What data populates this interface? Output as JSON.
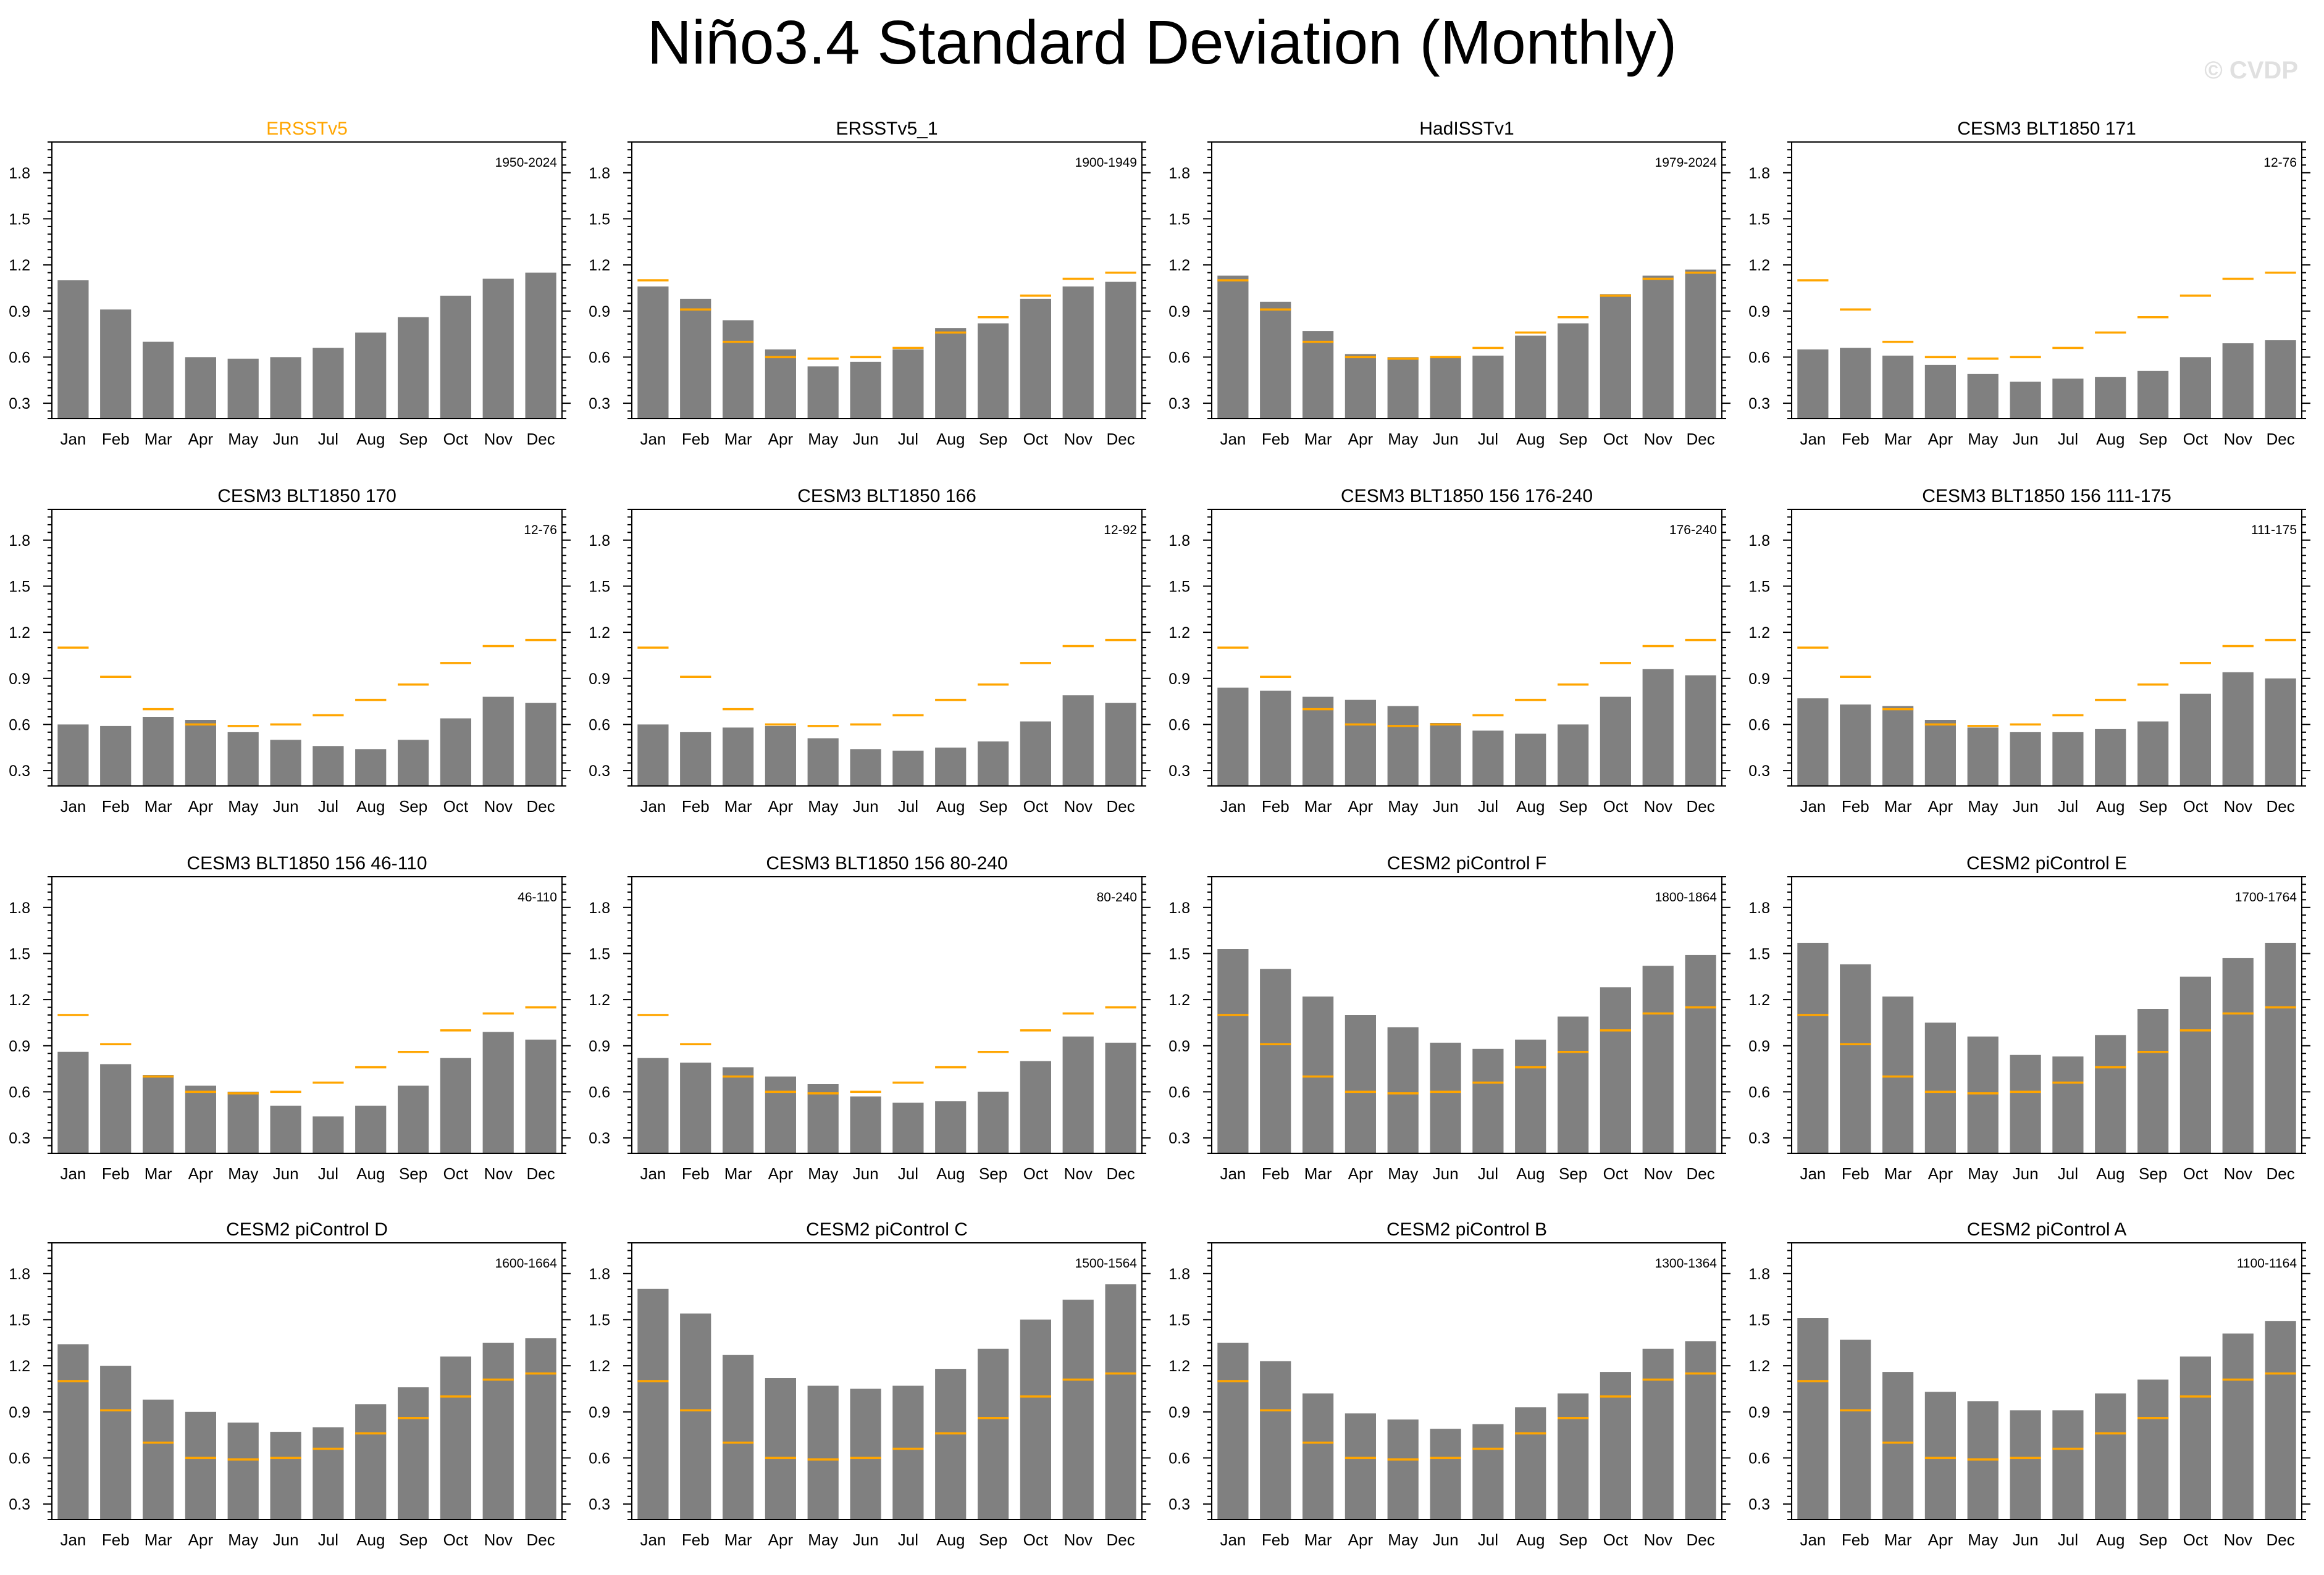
{
  "title": "Niño3.4 Standard Deviation (Monthly)",
  "watermark": "© CVDP",
  "colors": {
    "bar": "#808080",
    "reference": "#FFA500",
    "axis": "#000000",
    "reference_title": "#FFA500"
  },
  "reference_values": [
    1.1,
    0.91,
    0.7,
    0.6,
    0.59,
    0.6,
    0.66,
    0.76,
    0.86,
    1.0,
    1.11,
    1.15
  ],
  "chart_data": [
    {
      "type": "bar",
      "title": "ERSSTv5",
      "period": "1950-2024",
      "is_reference": true,
      "categories": [
        "Jan",
        "Feb",
        "Mar",
        "Apr",
        "May",
        "Jun",
        "Jul",
        "Aug",
        "Sep",
        "Oct",
        "Nov",
        "Dec"
      ],
      "values": [
        1.1,
        0.91,
        0.7,
        0.6,
        0.59,
        0.6,
        0.66,
        0.76,
        0.86,
        1.0,
        1.11,
        1.15
      ],
      "yticks": [
        "0.3",
        "0.6",
        "0.9",
        "1.2",
        "1.5",
        "1.8"
      ],
      "ylim": [
        0.2,
        2.0
      ]
    },
    {
      "type": "bar",
      "title": "ERSSTv5_1",
      "period": "1900-1949",
      "is_reference": false,
      "categories": [
        "Jan",
        "Feb",
        "Mar",
        "Apr",
        "May",
        "Jun",
        "Jul",
        "Aug",
        "Sep",
        "Oct",
        "Nov",
        "Dec"
      ],
      "values": [
        1.06,
        0.98,
        0.84,
        0.65,
        0.54,
        0.57,
        0.65,
        0.79,
        0.82,
        0.98,
        1.06,
        1.09
      ],
      "yticks": [
        "0.3",
        "0.6",
        "0.9",
        "1.2",
        "1.5",
        "1.8"
      ],
      "ylim": [
        0.2,
        2.0
      ]
    },
    {
      "type": "bar",
      "title": "HadISSTv1",
      "period": "1979-2024",
      "is_reference": false,
      "categories": [
        "Jan",
        "Feb",
        "Mar",
        "Apr",
        "May",
        "Jun",
        "Jul",
        "Aug",
        "Sep",
        "Oct",
        "Nov",
        "Dec"
      ],
      "values": [
        1.13,
        0.96,
        0.77,
        0.62,
        0.6,
        0.6,
        0.61,
        0.74,
        0.82,
        1.01,
        1.13,
        1.17
      ],
      "yticks": [
        "0.3",
        "0.6",
        "0.9",
        "1.2",
        "1.5",
        "1.8"
      ],
      "ylim": [
        0.2,
        2.0
      ]
    },
    {
      "type": "bar",
      "title": "CESM3 BLT1850 171",
      "period": "12-76",
      "is_reference": false,
      "categories": [
        "Jan",
        "Feb",
        "Mar",
        "Apr",
        "May",
        "Jun",
        "Jul",
        "Aug",
        "Sep",
        "Oct",
        "Nov",
        "Dec"
      ],
      "values": [
        0.65,
        0.66,
        0.61,
        0.55,
        0.49,
        0.44,
        0.46,
        0.47,
        0.51,
        0.6,
        0.69,
        0.71
      ],
      "yticks": [
        "0.3",
        "0.6",
        "0.9",
        "1.2",
        "1.5",
        "1.8"
      ],
      "ylim": [
        0.2,
        2.0
      ]
    },
    {
      "type": "bar",
      "title": "CESM3 BLT1850 170",
      "period": "12-76",
      "is_reference": false,
      "categories": [
        "Jan",
        "Feb",
        "Mar",
        "Apr",
        "May",
        "Jun",
        "Jul",
        "Aug",
        "Sep",
        "Oct",
        "Nov",
        "Dec"
      ],
      "values": [
        0.6,
        0.59,
        0.65,
        0.63,
        0.55,
        0.5,
        0.46,
        0.44,
        0.5,
        0.64,
        0.78,
        0.74
      ],
      "yticks": [
        "0.3",
        "0.6",
        "0.9",
        "1.2",
        "1.5",
        "1.8"
      ],
      "ylim": [
        0.2,
        2.0
      ]
    },
    {
      "type": "bar",
      "title": "CESM3 BLT1850 166",
      "period": "12-92",
      "is_reference": false,
      "categories": [
        "Jan",
        "Feb",
        "Mar",
        "Apr",
        "May",
        "Jun",
        "Jul",
        "Aug",
        "Sep",
        "Oct",
        "Nov",
        "Dec"
      ],
      "values": [
        0.6,
        0.55,
        0.58,
        0.59,
        0.51,
        0.44,
        0.43,
        0.45,
        0.49,
        0.62,
        0.79,
        0.74
      ],
      "yticks": [
        "0.3",
        "0.6",
        "0.9",
        "1.2",
        "1.5",
        "1.8"
      ],
      "ylim": [
        0.2,
        2.0
      ]
    },
    {
      "type": "bar",
      "title": "CESM3 BLT1850 156 176-240",
      "period": "176-240",
      "is_reference": false,
      "categories": [
        "Jan",
        "Feb",
        "Mar",
        "Apr",
        "May",
        "Jun",
        "Jul",
        "Aug",
        "Sep",
        "Oct",
        "Nov",
        "Dec"
      ],
      "values": [
        0.84,
        0.82,
        0.78,
        0.76,
        0.72,
        0.61,
        0.56,
        0.54,
        0.6,
        0.78,
        0.96,
        0.92
      ],
      "yticks": [
        "0.3",
        "0.6",
        "0.9",
        "1.2",
        "1.5",
        "1.8"
      ],
      "ylim": [
        0.2,
        2.0
      ]
    },
    {
      "type": "bar",
      "title": "CESM3 BLT1850 156 111-175",
      "period": "111-175",
      "is_reference": false,
      "categories": [
        "Jan",
        "Feb",
        "Mar",
        "Apr",
        "May",
        "Jun",
        "Jul",
        "Aug",
        "Sep",
        "Oct",
        "Nov",
        "Dec"
      ],
      "values": [
        0.77,
        0.73,
        0.72,
        0.63,
        0.58,
        0.55,
        0.55,
        0.57,
        0.62,
        0.8,
        0.94,
        0.9
      ],
      "yticks": [
        "0.3",
        "0.6",
        "0.9",
        "1.2",
        "1.5",
        "1.8"
      ],
      "ylim": [
        0.2,
        2.0
      ]
    },
    {
      "type": "bar",
      "title": "CESM3 BLT1850 156 46-110",
      "period": "46-110",
      "is_reference": false,
      "categories": [
        "Jan",
        "Feb",
        "Mar",
        "Apr",
        "May",
        "Jun",
        "Jul",
        "Aug",
        "Sep",
        "Oct",
        "Nov",
        "Dec"
      ],
      "values": [
        0.86,
        0.78,
        0.71,
        0.64,
        0.6,
        0.51,
        0.44,
        0.51,
        0.64,
        0.82,
        0.99,
        0.94
      ],
      "yticks": [
        "0.3",
        "0.6",
        "0.9",
        "1.2",
        "1.5",
        "1.8"
      ],
      "ylim": [
        0.2,
        2.0
      ]
    },
    {
      "type": "bar",
      "title": "CESM3 BLT1850 156 80-240",
      "period": "80-240",
      "is_reference": false,
      "categories": [
        "Jan",
        "Feb",
        "Mar",
        "Apr",
        "May",
        "Jun",
        "Jul",
        "Aug",
        "Sep",
        "Oct",
        "Nov",
        "Dec"
      ],
      "values": [
        0.82,
        0.79,
        0.76,
        0.7,
        0.65,
        0.57,
        0.53,
        0.54,
        0.6,
        0.8,
        0.96,
        0.92
      ],
      "yticks": [
        "0.3",
        "0.6",
        "0.9",
        "1.2",
        "1.5",
        "1.8"
      ],
      "ylim": [
        0.2,
        2.0
      ]
    },
    {
      "type": "bar",
      "title": "CESM2 piControl F",
      "period": "1800-1864",
      "is_reference": false,
      "categories": [
        "Jan",
        "Feb",
        "Mar",
        "Apr",
        "May",
        "Jun",
        "Jul",
        "Aug",
        "Sep",
        "Oct",
        "Nov",
        "Dec"
      ],
      "values": [
        1.53,
        1.4,
        1.22,
        1.1,
        1.02,
        0.92,
        0.88,
        0.94,
        1.09,
        1.28,
        1.42,
        1.49
      ],
      "yticks": [
        "0.3",
        "0.6",
        "0.9",
        "1.2",
        "1.5",
        "1.8"
      ],
      "ylim": [
        0.2,
        2.0
      ]
    },
    {
      "type": "bar",
      "title": "CESM2 piControl E",
      "period": "1700-1764",
      "is_reference": false,
      "categories": [
        "Jan",
        "Feb",
        "Mar",
        "Apr",
        "May",
        "Jun",
        "Jul",
        "Aug",
        "Sep",
        "Oct",
        "Nov",
        "Dec"
      ],
      "values": [
        1.57,
        1.43,
        1.22,
        1.05,
        0.96,
        0.84,
        0.83,
        0.97,
        1.14,
        1.35,
        1.47,
        1.57
      ],
      "yticks": [
        "0.3",
        "0.6",
        "0.9",
        "1.2",
        "1.5",
        "1.8"
      ],
      "ylim": [
        0.2,
        2.0
      ]
    },
    {
      "type": "bar",
      "title": "CESM2 piControl D",
      "period": "1600-1664",
      "is_reference": false,
      "categories": [
        "Jan",
        "Feb",
        "Mar",
        "Apr",
        "May",
        "Jun",
        "Jul",
        "Aug",
        "Sep",
        "Oct",
        "Nov",
        "Dec"
      ],
      "values": [
        1.34,
        1.2,
        0.98,
        0.9,
        0.83,
        0.77,
        0.8,
        0.95,
        1.06,
        1.26,
        1.35,
        1.38
      ],
      "yticks": [
        "0.3",
        "0.6",
        "0.9",
        "1.2",
        "1.5",
        "1.8"
      ],
      "ylim": [
        0.2,
        2.0
      ]
    },
    {
      "type": "bar",
      "title": "CESM2 piControl C",
      "period": "1500-1564",
      "is_reference": false,
      "categories": [
        "Jan",
        "Feb",
        "Mar",
        "Apr",
        "May",
        "Jun",
        "Jul",
        "Aug",
        "Sep",
        "Oct",
        "Nov",
        "Dec"
      ],
      "values": [
        1.7,
        1.54,
        1.27,
        1.12,
        1.07,
        1.05,
        1.07,
        1.18,
        1.31,
        1.5,
        1.63,
        1.73
      ],
      "yticks": [
        "0.3",
        "0.6",
        "0.9",
        "1.2",
        "1.5",
        "1.8"
      ],
      "ylim": [
        0.2,
        2.0
      ]
    },
    {
      "type": "bar",
      "title": "CESM2 piControl B",
      "period": "1300-1364",
      "is_reference": false,
      "categories": [
        "Jan",
        "Feb",
        "Mar",
        "Apr",
        "May",
        "Jun",
        "Jul",
        "Aug",
        "Sep",
        "Oct",
        "Nov",
        "Dec"
      ],
      "values": [
        1.35,
        1.23,
        1.02,
        0.89,
        0.85,
        0.79,
        0.82,
        0.93,
        1.02,
        1.16,
        1.31,
        1.36
      ],
      "yticks": [
        "0.3",
        "0.6",
        "0.9",
        "1.2",
        "1.5",
        "1.8"
      ],
      "ylim": [
        0.2,
        2.0
      ]
    },
    {
      "type": "bar",
      "title": "CESM2 piControl A",
      "period": "1100-1164",
      "is_reference": false,
      "categories": [
        "Jan",
        "Feb",
        "Mar",
        "Apr",
        "May",
        "Jun",
        "Jul",
        "Aug",
        "Sep",
        "Oct",
        "Nov",
        "Dec"
      ],
      "values": [
        1.51,
        1.37,
        1.16,
        1.03,
        0.97,
        0.91,
        0.91,
        1.02,
        1.11,
        1.26,
        1.41,
        1.49
      ],
      "yticks": [
        "0.3",
        "0.6",
        "0.9",
        "1.2",
        "1.5",
        "1.8"
      ],
      "ylim": [
        0.2,
        2.0
      ]
    }
  ]
}
